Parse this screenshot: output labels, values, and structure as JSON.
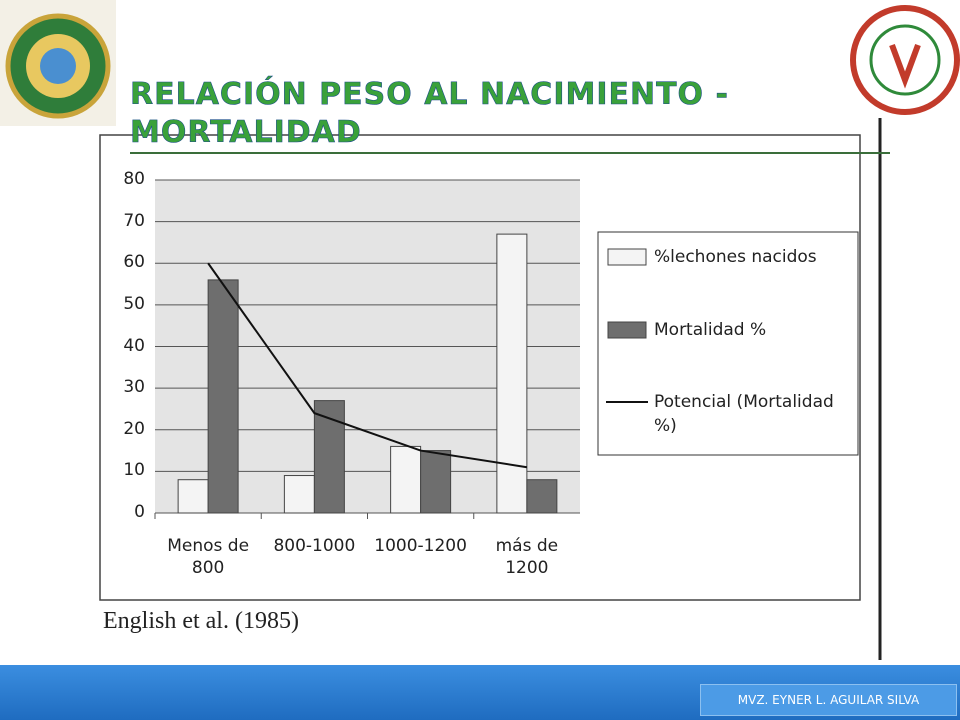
{
  "slide": {
    "title": "Relación peso al nacimiento - mortalidad",
    "citation": "English et al. (1985)",
    "footer": "MVZ. EYNER L. AGUILAR SILVA"
  },
  "chart_data": {
    "type": "bar",
    "categories": [
      "Menos de 800",
      "800-1000",
      "1000-1200",
      "más de 1200"
    ],
    "series": [
      {
        "name": "%lechones nacidos",
        "color": "#f4f4f4",
        "values": [
          8,
          9,
          16,
          67
        ]
      },
      {
        "name": "Mortalidad %",
        "color": "#6e6e6e",
        "values": [
          56,
          27,
          15,
          8
        ]
      },
      {
        "name": "Potencial (Mortalidad %)",
        "type": "line",
        "color": "#111111",
        "values": [
          60,
          24,
          15,
          11
        ]
      }
    ],
    "ylim": [
      0,
      80
    ],
    "yticks": [
      0,
      10,
      20,
      30,
      40,
      50,
      60,
      70,
      80
    ],
    "grid": true,
    "legend": "right"
  }
}
